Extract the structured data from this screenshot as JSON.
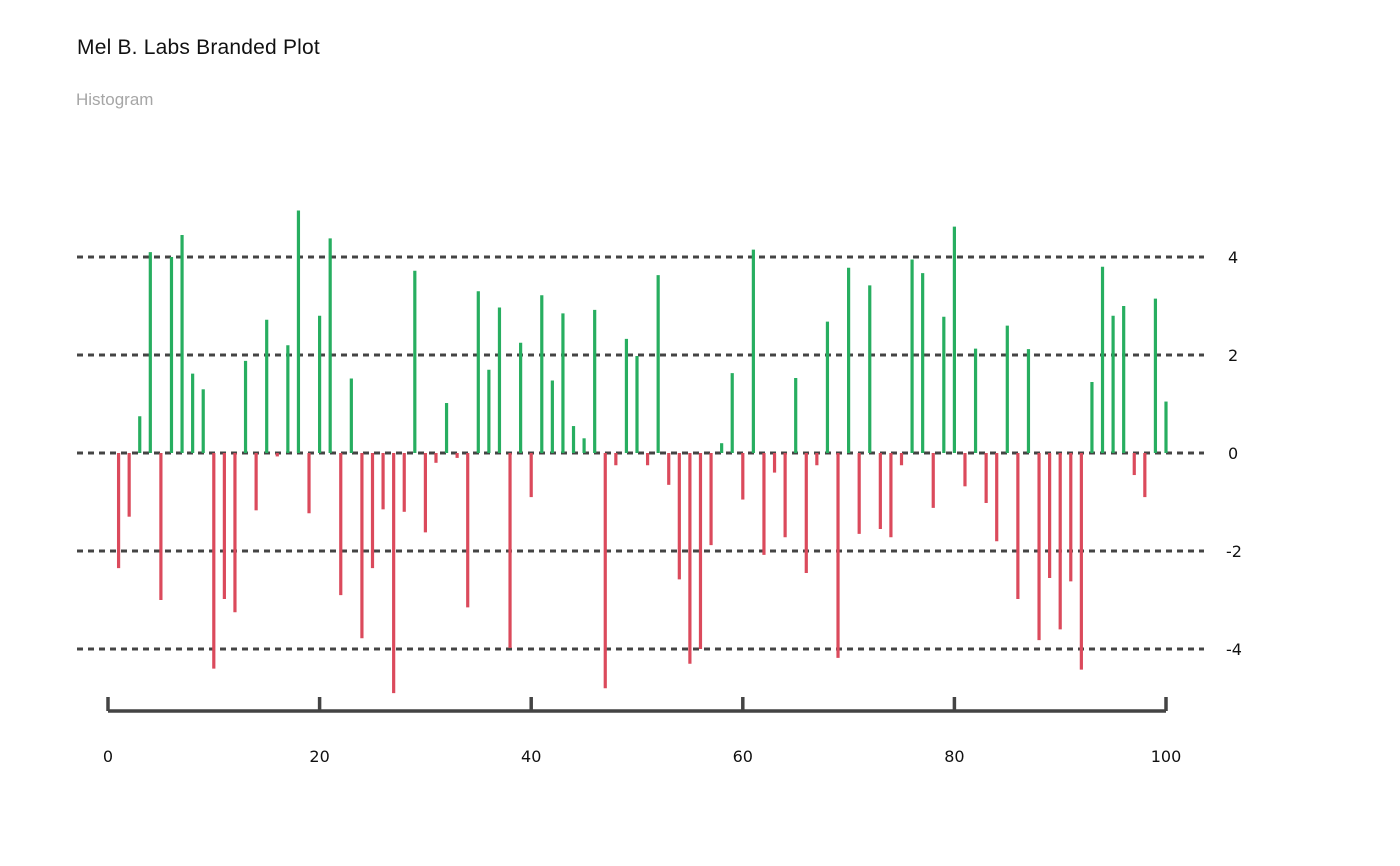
{
  "header": {
    "title": "Mel B. Labs Branded Plot",
    "subtitle": "Histogram"
  },
  "colors": {
    "positive": "#27ae60",
    "negative": "#db4a5c",
    "grid": "#444444",
    "axis": "#444444"
  },
  "chart_data": {
    "type": "bar",
    "title": "Mel B. Labs Branded Plot",
    "subtitle": "Histogram",
    "xlabel": "",
    "ylabel": "",
    "xlim": [
      0,
      100
    ],
    "ylim": [
      -5,
      5
    ],
    "xticks": [
      0,
      20,
      40,
      60,
      80,
      100
    ],
    "yticks": [
      -4,
      -2,
      0,
      2,
      4
    ],
    "grid": "horizontal dashed",
    "y_axis_side": "right",
    "x": [
      1,
      2,
      3,
      4,
      5,
      6,
      7,
      8,
      9,
      10,
      11,
      12,
      13,
      14,
      15,
      16,
      17,
      18,
      19,
      20,
      21,
      22,
      23,
      24,
      25,
      26,
      27,
      28,
      29,
      30,
      31,
      32,
      33,
      34,
      35,
      36,
      37,
      38,
      39,
      40,
      41,
      42,
      43,
      44,
      45,
      46,
      47,
      48,
      49,
      50,
      51,
      52,
      53,
      54,
      55,
      56,
      57,
      58,
      59,
      60,
      61,
      62,
      63,
      64,
      65,
      66,
      67,
      68,
      69,
      70,
      71,
      72,
      73,
      74,
      75,
      76,
      77,
      78,
      79,
      80,
      81,
      82,
      83,
      84,
      85,
      86,
      87,
      88,
      89,
      90,
      91,
      92,
      93,
      94,
      95,
      96,
      97,
      98,
      99,
      100
    ],
    "values": [
      -2.35,
      -1.3,
      0.75,
      4.1,
      -3.0,
      4.0,
      4.45,
      1.62,
      1.3,
      -4.4,
      -2.98,
      -3.25,
      1.88,
      -1.17,
      2.72,
      -0.07,
      2.2,
      4.95,
      -1.23,
      2.8,
      4.38,
      -2.9,
      1.52,
      -3.78,
      -2.35,
      -1.15,
      -4.9,
      -1.2,
      3.72,
      -1.62,
      -0.2,
      1.02,
      -0.1,
      -3.15,
      3.3,
      1.7,
      2.97,
      -3.98,
      2.25,
      -0.9,
      3.22,
      1.48,
      2.85,
      0.55,
      0.3,
      2.92,
      -4.8,
      -0.25,
      2.33,
      1.98,
      -0.25,
      3.63,
      -0.65,
      -2.58,
      -4.3,
      -4.0,
      -1.88,
      0.2,
      1.63,
      -0.95,
      4.15,
      -2.08,
      -0.4,
      -1.72,
      1.53,
      -2.45,
      -0.25,
      2.68,
      -4.18,
      3.78,
      -1.65,
      3.42,
      -1.55,
      -1.72,
      -0.25,
      3.95,
      3.67,
      -1.12,
      2.78,
      4.62,
      -0.68,
      2.13,
      -1.02,
      -1.8,
      2.6,
      -2.98,
      2.12,
      -3.82,
      -2.55,
      -3.6,
      -2.62,
      -4.42,
      1.45,
      3.8,
      2.8,
      3.0,
      -0.45,
      -0.9,
      3.15,
      1.05
    ]
  }
}
